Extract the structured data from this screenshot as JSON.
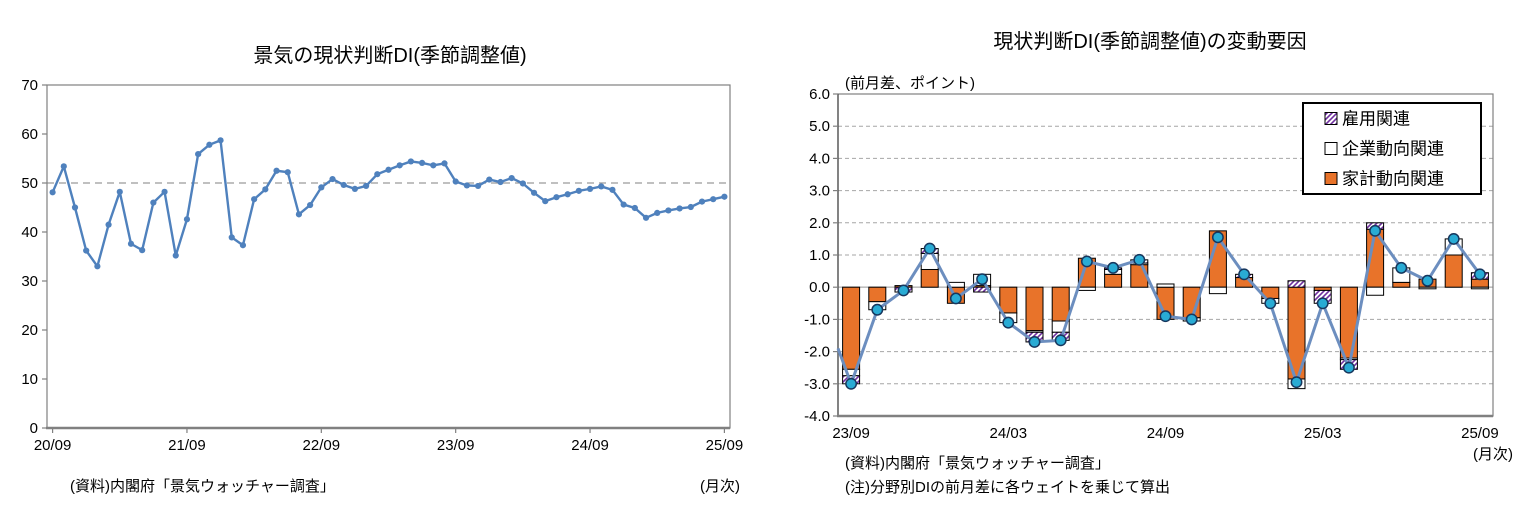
{
  "page": {
    "background": "#ffffff"
  },
  "left_chart": {
    "title": "景気の現状判断DI(季節調整値)",
    "source_note": "(資料)内閣府「景気ウォッチャー調査」",
    "frequency_note": "(月次)",
    "y_tick_labels": [
      "0",
      "10",
      "20",
      "30",
      "40",
      "50",
      "60",
      "70"
    ],
    "x_tick_labels": [
      "20/09",
      "21/09",
      "22/09",
      "23/09",
      "24/09",
      "25/09"
    ]
  },
  "right_chart": {
    "title": "現状判断DI(季節調整値)の変動要因",
    "unit_label": "(前月差、ポイント)",
    "source_note": "(資料)内閣府「景気ウォッチャー調査」",
    "calc_note": "(注)分野別DIの前月差に各ウェイトを乗じて算出",
    "frequency_note": "(月次)",
    "y_tick_labels": [
      "6.0",
      "5.0",
      "4.0",
      "3.0",
      "2.0",
      "1.0",
      "0.0",
      "-1.0",
      "-2.0",
      "-3.0",
      "-4.0"
    ],
    "x_tick_labels": [
      "23/09",
      "24/03",
      "24/09",
      "25/03",
      "25/09"
    ],
    "legend": [
      {
        "label": "雇用関連",
        "style": "hatch"
      },
      {
        "label": "企業動向関連",
        "style": "white"
      },
      {
        "label": "家計動向関連",
        "style": "orange"
      }
    ]
  },
  "colors": {
    "left_line": "#4F81BD",
    "right_line": "#6C8EBF",
    "marker_fill": "#29ABD4",
    "marker_stroke": "#17375E",
    "bar_household": "#E8732A",
    "bar_corporate": "#FFFFFF",
    "hatch_purple": "#7030A0",
    "bar_border": "#000000",
    "negative_tick_red": "#EE1111",
    "grid": "#A6A6A6",
    "axis": "#808080",
    "zero_line": "#BFBFBF",
    "ref_line": "#9A9A9A"
  },
  "chart_data": [
    {
      "type": "line",
      "title": "景気の現状判断DI(季節調整値)",
      "x_start": "20/09",
      "x_end": "25/09",
      "x_interval": "monthly",
      "x_tick_labels": [
        "20/09",
        "21/09",
        "22/09",
        "23/09",
        "24/09",
        "25/09"
      ],
      "x_tick_indices": [
        0,
        12,
        24,
        36,
        48,
        60
      ],
      "ylim": [
        0,
        70
      ],
      "ytick_step": 10,
      "reference_line_y": 50,
      "grid": "dashed reference line at 50 only",
      "series": [
        {
          "name": "現状判断DI(季節調整値)",
          "values": [
            48.1,
            53.4,
            45.0,
            36.2,
            33.0,
            41.5,
            48.2,
            37.6,
            36.3,
            46.0,
            48.2,
            35.2,
            42.6,
            55.9,
            57.8,
            58.7,
            38.9,
            37.3,
            46.7,
            48.7,
            52.5,
            52.2,
            43.6,
            45.5,
            49.1,
            50.8,
            49.6,
            48.8,
            49.4,
            51.8,
            52.7,
            53.6,
            54.4,
            54.1,
            53.6,
            54.0,
            50.3,
            49.5,
            49.4,
            50.7,
            50.2,
            51.0,
            49.9,
            48.0,
            46.3,
            47.1,
            47.7,
            48.4,
            48.8,
            49.3,
            48.6,
            45.6,
            44.9,
            42.9,
            43.9,
            44.4,
            44.8,
            45.1,
            46.2,
            46.7,
            47.2
          ]
        }
      ]
    },
    {
      "type": "bar",
      "stacked": true,
      "title": "現状判断DI(季節調整値)の変動要因",
      "ylabel": "(前月差、ポイント)",
      "ylim": [
        -4,
        6
      ],
      "ytick_step": 1,
      "x_start": "23/09",
      "x_end": "25/09",
      "x_interval": "monthly",
      "x_tick_labels": [
        "23/09",
        "24/03",
        "24/09",
        "25/03",
        "25/09"
      ],
      "x_tick_indices": [
        0,
        6,
        12,
        18,
        24
      ],
      "legend_position": "top-right",
      "series": [
        {
          "name": "家計動向関連",
          "type": "bar",
          "values": [
            -2.55,
            -0.45,
            0.05,
            0.55,
            -0.5,
            0.05,
            -0.8,
            -1.35,
            -1.05,
            0.9,
            0.4,
            0.7,
            -1.0,
            -0.95,
            1.75,
            0.3,
            -0.35,
            -2.85,
            -0.1,
            -2.2,
            1.8,
            0.15,
            0.25,
            1.0,
            0.25
          ]
        },
        {
          "name": "企業動向関連",
          "type": "bar",
          "values": [
            -0.2,
            -0.25,
            0.0,
            0.5,
            0.15,
            0.35,
            -0.3,
            -0.05,
            -0.35,
            -0.1,
            0.15,
            0.05,
            0.1,
            -0.1,
            -0.2,
            0.0,
            -0.15,
            -0.3,
            0.0,
            -0.05,
            -0.25,
            0.45,
            -0.05,
            0.5,
            -0.05
          ]
        },
        {
          "name": "雇用関連",
          "type": "bar",
          "values": [
            -0.25,
            0.0,
            -0.15,
            0.15,
            0.0,
            -0.15,
            0.0,
            -0.3,
            -0.25,
            0.0,
            0.05,
            0.1,
            0.0,
            0.0,
            0.0,
            0.1,
            0.0,
            0.2,
            -0.4,
            -0.3,
            0.2,
            0.0,
            0.0,
            0.0,
            0.2
          ]
        },
        {
          "name": "total",
          "type": "line",
          "edge_start_value": -1.9,
          "values": [
            -3.0,
            -0.7,
            -0.1,
            1.2,
            -0.35,
            0.25,
            -1.1,
            -1.7,
            -1.65,
            0.8,
            0.6,
            0.85,
            -0.9,
            -1.0,
            1.55,
            0.4,
            -0.5,
            -2.95,
            -0.5,
            -2.5,
            1.75,
            0.6,
            0.2,
            1.5,
            0.4
          ]
        }
      ]
    }
  ]
}
